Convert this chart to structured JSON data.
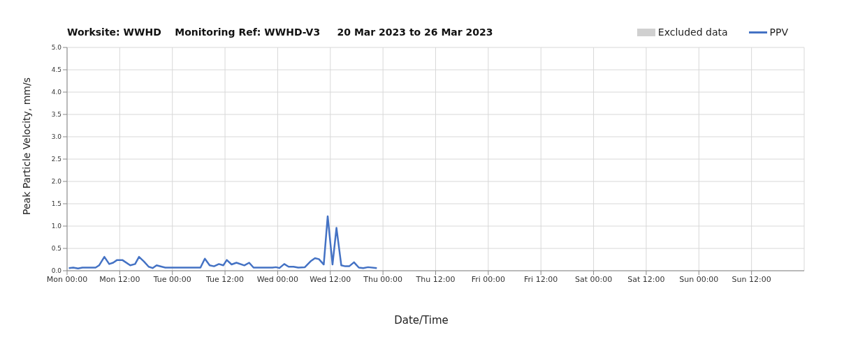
{
  "chart_data": {
    "type": "line",
    "title": "Worksite: WWHD    Monitoring Ref: WWHD-V3     20 Mar 2023 to 26 Mar 2023",
    "xlabel": "Date/Time",
    "ylabel": "Peak Particle Velocity, mm/s",
    "xlim": [
      "2023-03-20T00:00",
      "2023-03-27T00:00"
    ],
    "xticks": [
      {
        "value": "2023-03-20T00:00",
        "label": "Mon 00:00"
      },
      {
        "value": "2023-03-20T12:00",
        "label": "Mon 12:00"
      },
      {
        "value": "2023-03-21T00:00",
        "label": "Tue 00:00"
      },
      {
        "value": "2023-03-21T12:00",
        "label": "Tue 12:00"
      },
      {
        "value": "2023-03-22T00:00",
        "label": "Wed 00:00"
      },
      {
        "value": "2023-03-22T12:00",
        "label": "Wed 12:00"
      },
      {
        "value": "2023-03-23T00:00",
        "label": "Thu 00:00"
      },
      {
        "value": "2023-03-23T12:00",
        "label": "Thu 12:00"
      },
      {
        "value": "2023-03-24T00:00",
        "label": "Fri 00:00"
      },
      {
        "value": "2023-03-24T12:00",
        "label": "Fri 12:00"
      },
      {
        "value": "2023-03-25T00:00",
        "label": "Sat 00:00"
      },
      {
        "value": "2023-03-25T12:00",
        "label": "Sat 12:00"
      },
      {
        "value": "2023-03-26T00:00",
        "label": "Sun 00:00"
      },
      {
        "value": "2023-03-26T12:00",
        "label": "Sun 12:00"
      }
    ],
    "ylim": [
      0,
      5
    ],
    "yticks": [
      {
        "value": 0,
        "label": "0.0"
      },
      {
        "value": 0.5,
        "label": "0.5"
      },
      {
        "value": 1,
        "label": "1.0"
      },
      {
        "value": 1.5,
        "label": "1.5"
      },
      {
        "value": 2,
        "label": "2.0"
      },
      {
        "value": 2.5,
        "label": "2.5"
      },
      {
        "value": 3,
        "label": "3.0"
      },
      {
        "value": 3.5,
        "label": "3.5"
      },
      {
        "value": 4,
        "label": "4.0"
      },
      {
        "value": 4.5,
        "label": "4.5"
      },
      {
        "value": 5,
        "label": "5.0"
      }
    ],
    "grid": true,
    "legend": "top right",
    "marker": "none",
    "line_style": "solid",
    "series": [
      {
        "name": "Excluded data",
        "type": "area",
        "color": "#d0d0d0"
      },
      {
        "name": "PPV",
        "color": "#4472c4",
        "x": [
          "2023-03-20T00:24",
          "2023-03-20T01:24",
          "2023-03-20T02:30",
          "2023-03-20T03:30",
          "2023-03-20T06:30",
          "2023-03-20T07:18",
          "2023-03-20T08:30",
          "2023-03-20T09:36",
          "2023-03-20T10:30",
          "2023-03-20T11:24",
          "2023-03-20T12:36",
          "2023-03-20T14:24",
          "2023-03-20T15:30",
          "2023-03-20T16:24",
          "2023-03-20T17:30",
          "2023-03-20T18:36",
          "2023-03-20T19:30",
          "2023-03-20T20:24",
          "2023-03-20T21:36",
          "2023-03-20T22:24",
          "2023-03-21T06:24",
          "2023-03-21T07:24",
          "2023-03-21T08:30",
          "2023-03-21T09:30",
          "2023-03-21T10:36",
          "2023-03-21T11:36",
          "2023-03-21T12:24",
          "2023-03-21T13:30",
          "2023-03-21T14:36",
          "2023-03-21T16:24",
          "2023-03-21T17:30",
          "2023-03-21T18:30",
          "2023-03-21T22:48",
          "2023-03-21T23:36",
          "2023-03-22T00:24",
          "2023-03-22T01:30",
          "2023-03-22T02:30",
          "2023-03-22T03:36",
          "2023-03-22T04:42",
          "2023-03-22T06:12",
          "2023-03-22T07:36",
          "2023-03-22T08:30",
          "2023-03-22T09:24",
          "2023-03-22T10:30",
          "2023-03-22T11:24",
          "2023-03-22T12:30",
          "2023-03-22T13:24",
          "2023-03-22T14:30",
          "2023-03-22T15:24",
          "2023-03-22T16:18",
          "2023-03-22T17:24",
          "2023-03-22T18:30",
          "2023-03-22T19:30",
          "2023-03-22T20:36",
          "2023-03-22T22:36"
        ],
        "values": [
          0.06,
          0.07,
          0.05,
          0.07,
          0.07,
          0.12,
          0.31,
          0.15,
          0.18,
          0.24,
          0.24,
          0.12,
          0.15,
          0.31,
          0.21,
          0.09,
          0.06,
          0.12,
          0.09,
          0.07,
          0.07,
          0.27,
          0.12,
          0.1,
          0.15,
          0.12,
          0.24,
          0.14,
          0.18,
          0.12,
          0.18,
          0.07,
          0.07,
          0.08,
          0.06,
          0.15,
          0.09,
          0.09,
          0.07,
          0.08,
          0.22,
          0.28,
          0.26,
          0.14,
          1.22,
          0.14,
          0.96,
          0.12,
          0.1,
          0.1,
          0.19,
          0.07,
          0.06,
          0.08,
          0.06
        ]
      }
    ]
  }
}
